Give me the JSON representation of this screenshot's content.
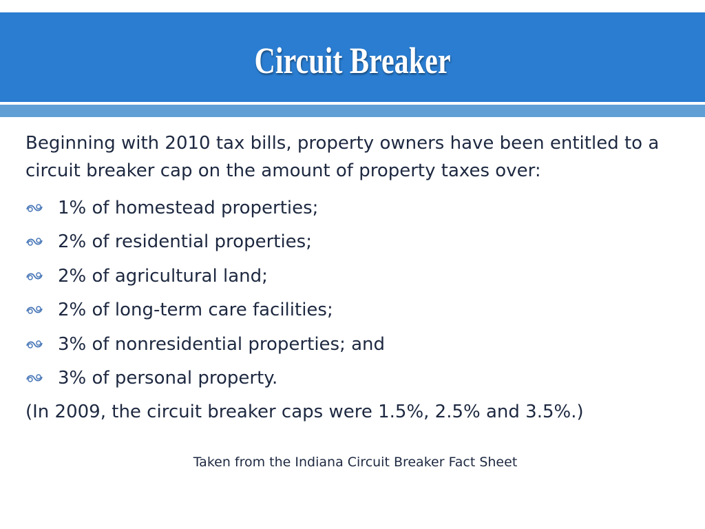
{
  "header": {
    "title": "Circuit Breaker"
  },
  "body": {
    "intro": "Beginning with 2010 tax bills, property owners have been entitled to a circuit breaker cap on the amount of property taxes over:",
    "bullets": [
      "1% of homestead properties;",
      "2% of residential properties;",
      "2% of agricultural land;",
      "2% of long-term care facilities;",
      "3% of nonresidential properties; and",
      "3% of personal property."
    ],
    "note": "(In 2009, the circuit breaker caps were 1.5%, 2.5% and 3.5%.)"
  },
  "footer": {
    "source": "Taken from the Indiana Circuit Breaker Fact Sheet"
  }
}
